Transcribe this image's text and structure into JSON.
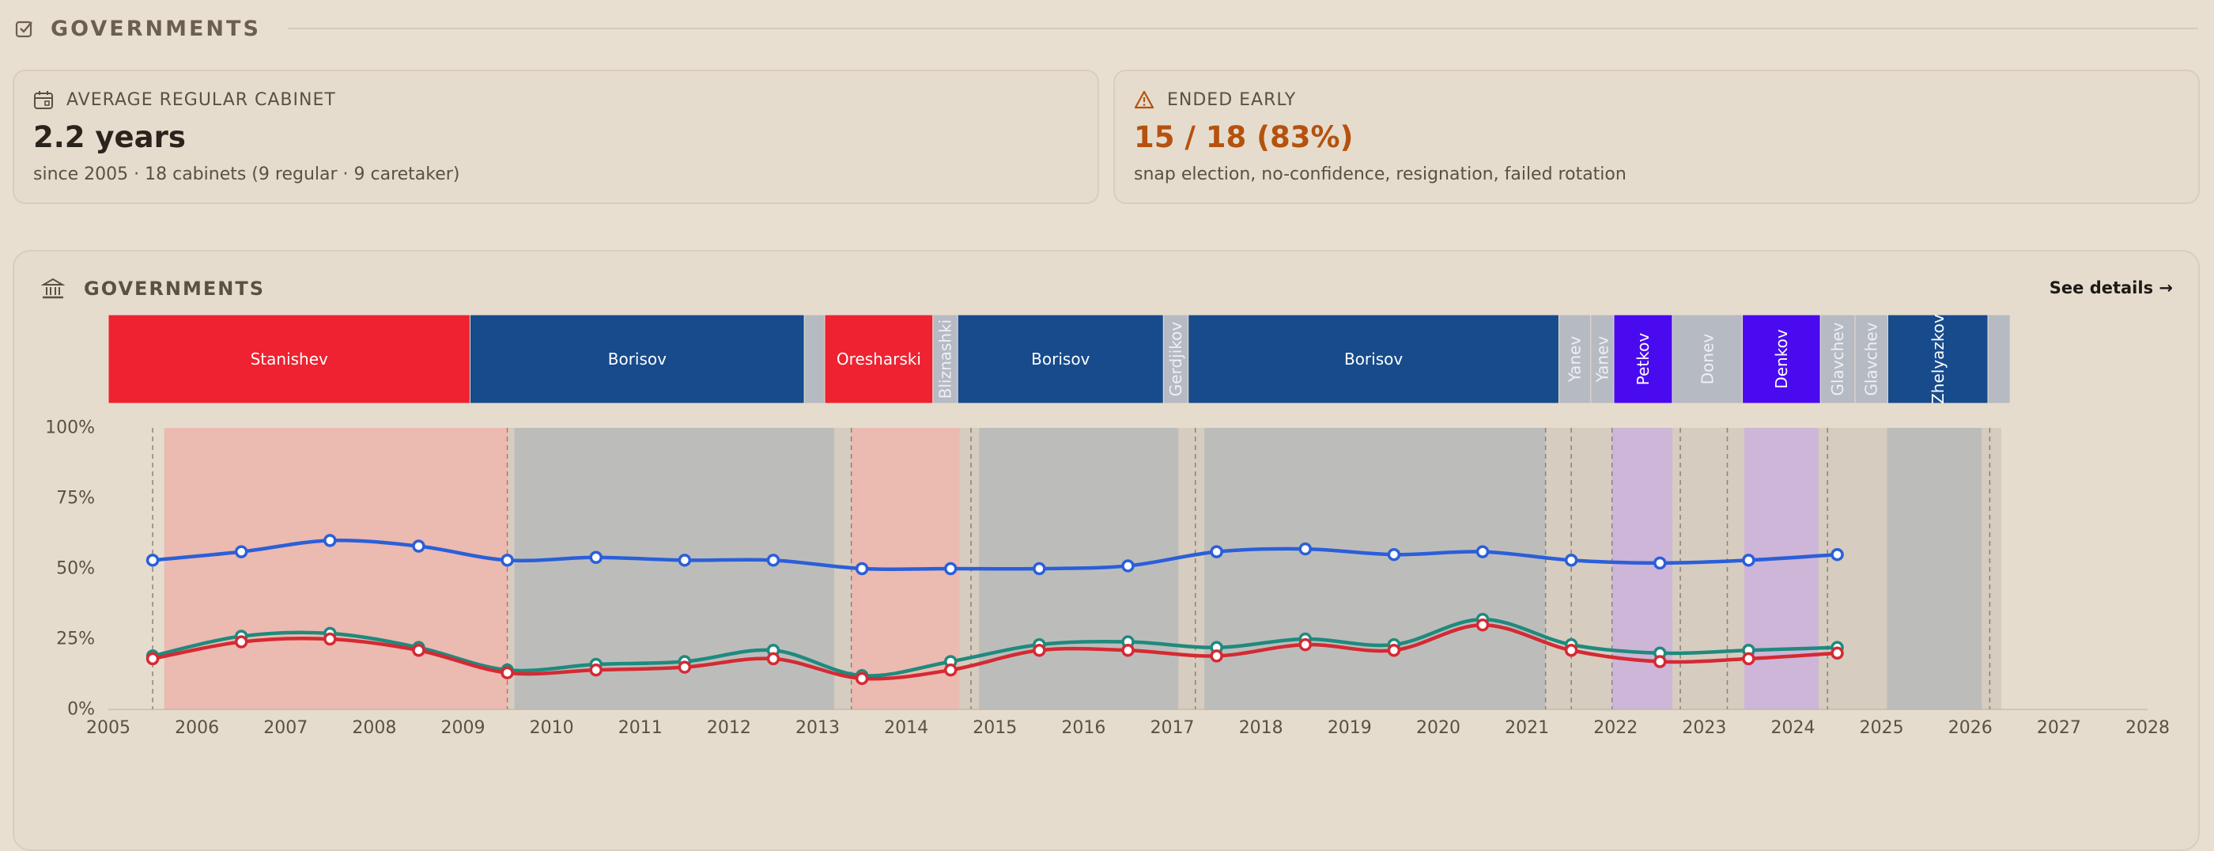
{
  "header": {
    "title": "GOVERNMENTS",
    "icon": "checkbox-icon"
  },
  "cards": {
    "avg": {
      "label": "AVERAGE REGULAR CABINET",
      "value": "2.2 years",
      "sub": "since 2005 · 18 cabinets (9 regular · 9 caretaker)",
      "icon": "calendar-icon"
    },
    "early": {
      "label": "ENDED EARLY",
      "value": "15 / 18 (83%)",
      "sub": "snap election, no-confidence, resignation, failed rotation",
      "icon": "warning-icon",
      "value_color": "#b4520e"
    }
  },
  "panel": {
    "title": "GOVERNMENTS",
    "icon": "bank-icon",
    "link": "See details →"
  },
  "colors": {
    "red": "#ee2230",
    "blue": "#174b8c",
    "grey": "#b6bac3",
    "purple": "#4a0af0"
  },
  "chart_data": {
    "type": "line",
    "xlim": [
      2005,
      2028
    ],
    "ylim": [
      0,
      100
    ],
    "x_ticks": [
      "2005",
      "2006",
      "2007",
      "2008",
      "2009",
      "2010",
      "2011",
      "2012",
      "2013",
      "2014",
      "2015",
      "2016",
      "2017",
      "2018",
      "2019",
      "2020",
      "2021",
      "2022",
      "2023",
      "2024",
      "2025",
      "2026",
      "2027",
      "2028"
    ],
    "y_ticks": [
      "0%",
      "25%",
      "50%",
      "75%",
      "100%"
    ],
    "cabinets": [
      {
        "name": "Stanishev",
        "start": 2005.0,
        "end": 2009.08,
        "color": "red",
        "label": "Stanishev",
        "vertical": false
      },
      {
        "name": "Borisov",
        "start": 2009.08,
        "end": 2012.85,
        "color": "blue",
        "label": "Borisov",
        "vertical": false
      },
      {
        "name": "",
        "start": 2012.85,
        "end": 2013.08,
        "color": "grey",
        "label": "",
        "vertical": false
      },
      {
        "name": "Oresharski",
        "start": 2013.08,
        "end": 2014.3,
        "color": "red",
        "label": "Oresharski",
        "vertical": false
      },
      {
        "name": "Bliznashki",
        "start": 2014.3,
        "end": 2014.58,
        "color": "grey",
        "label": "Bliznashki",
        "vertical": true
      },
      {
        "name": "Borisov",
        "start": 2014.58,
        "end": 2016.9,
        "color": "blue",
        "label": "Borisov",
        "vertical": false
      },
      {
        "name": "Gerdjikov",
        "start": 2016.9,
        "end": 2017.18,
        "color": "grey",
        "label": "Gerdjikov",
        "vertical": true
      },
      {
        "name": "Borisov",
        "start": 2017.18,
        "end": 2021.36,
        "color": "blue",
        "label": "Borisov",
        "vertical": false
      },
      {
        "name": "Yanev",
        "start": 2021.36,
        "end": 2021.72,
        "color": "grey",
        "label": "Yanev",
        "vertical": true
      },
      {
        "name": "Yanev",
        "start": 2021.72,
        "end": 2021.98,
        "color": "grey",
        "label": "Yanev",
        "vertical": true
      },
      {
        "name": "Petkov",
        "start": 2021.98,
        "end": 2022.64,
        "color": "purple",
        "label": "Petkov",
        "vertical": true
      },
      {
        "name": "Donev",
        "start": 2022.64,
        "end": 2023.43,
        "color": "grey",
        "label": "Donev",
        "vertical": true
      },
      {
        "name": "Denkov",
        "start": 2023.43,
        "end": 2024.31,
        "color": "purple",
        "label": "Denkov",
        "vertical": true
      },
      {
        "name": "Glavchev",
        "start": 2024.31,
        "end": 2024.7,
        "color": "grey",
        "label": "Glavchev",
        "vertical": true
      },
      {
        "name": "Glavchev",
        "start": 2024.7,
        "end": 2025.07,
        "color": "grey",
        "label": "Glavchev",
        "vertical": true
      },
      {
        "name": "Zhelyazkov",
        "start": 2025.07,
        "end": 2026.2,
        "color": "blue",
        "label": "Zhelyazkov",
        "vertical": true
      },
      {
        "name": "",
        "start": 2026.2,
        "end": 2026.45,
        "color": "grey",
        "label": "",
        "vertical": false
      }
    ],
    "bands": [
      {
        "start": 2005.63,
        "end": 2009.5,
        "color": "#ebbab0"
      },
      {
        "start": 2009.5,
        "end": 2009.58,
        "color": "#d6ccbf"
      },
      {
        "start": 2009.58,
        "end": 2013.19,
        "color": "#bcbdbb"
      },
      {
        "start": 2013.19,
        "end": 2013.38,
        "color": "#d6ccbf"
      },
      {
        "start": 2013.38,
        "end": 2014.6,
        "color": "#ebbab0"
      },
      {
        "start": 2014.6,
        "end": 2014.82,
        "color": "#d6ccbf"
      },
      {
        "start": 2014.82,
        "end": 2017.07,
        "color": "#bcbdbb"
      },
      {
        "start": 2017.07,
        "end": 2017.36,
        "color": "#d6ccbf"
      },
      {
        "start": 2017.36,
        "end": 2021.21,
        "color": "#bcbdbb"
      },
      {
        "start": 2021.21,
        "end": 2021.96,
        "color": "#d6ccbf"
      },
      {
        "start": 2021.96,
        "end": 2022.64,
        "color": "#cdb6d8"
      },
      {
        "start": 2022.64,
        "end": 2023.45,
        "color": "#d6ccbf"
      },
      {
        "start": 2023.45,
        "end": 2024.29,
        "color": "#cdb6d8"
      },
      {
        "start": 2024.29,
        "end": 2025.06,
        "color": "#d6ccbf"
      },
      {
        "start": 2025.06,
        "end": 2026.13,
        "color": "#bcbdbb"
      },
      {
        "start": 2026.13,
        "end": 2026.35,
        "color": "#d6ccbf"
      }
    ],
    "dashed_lines": [
      2005.5,
      2009.5,
      2013.38,
      2014.73,
      2017.26,
      2021.21,
      2021.5,
      2021.96,
      2022.73,
      2023.26,
      2024.39,
      2026.22
    ],
    "x": [
      2005.5,
      2006.5,
      2007.5,
      2008.5,
      2009.5,
      2010.5,
      2011.5,
      2012.5,
      2013.5,
      2014.5,
      2015.5,
      2016.5,
      2017.5,
      2018.5,
      2019.5,
      2020.5,
      2021.5,
      2022.5,
      2023.5,
      2024.5
    ],
    "series": [
      {
        "color": "#2b5fd9",
        "values": [
          53,
          56,
          60,
          58,
          53,
          54,
          53,
          53,
          50,
          50,
          50,
          51,
          56,
          57,
          55,
          56,
          53,
          52,
          53,
          55
        ]
      },
      {
        "color": "#1f8a7d",
        "values": [
          19,
          26,
          27,
          22,
          14,
          16,
          17,
          21,
          12,
          17,
          23,
          24,
          22,
          25,
          23,
          32,
          23,
          20,
          21,
          22
        ]
      },
      {
        "color": "#d42a33",
        "values": [
          18,
          24,
          25,
          21,
          13,
          14,
          15,
          18,
          11,
          14,
          21,
          21,
          19,
          23,
          21,
          30,
          21,
          17,
          18,
          20
        ]
      }
    ]
  }
}
